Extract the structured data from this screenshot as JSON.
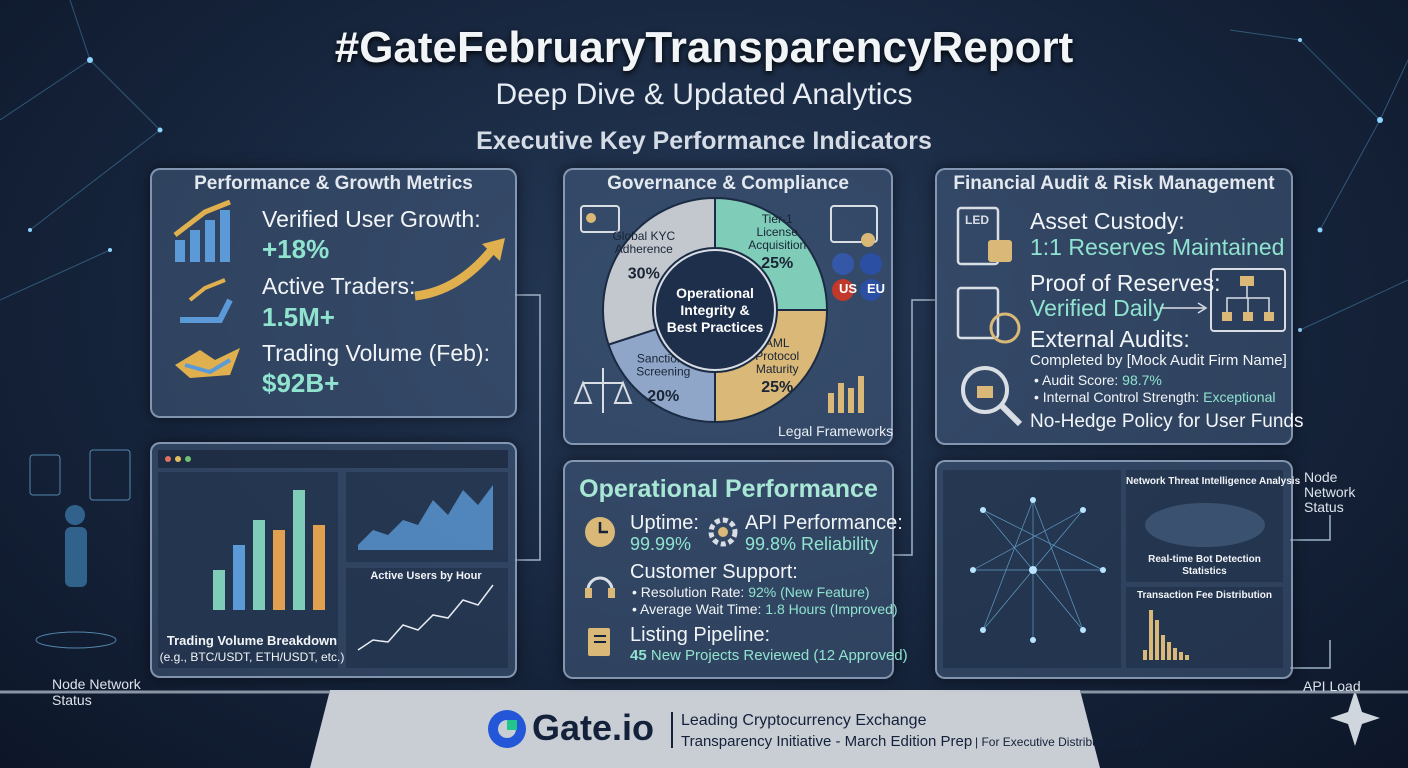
{
  "header": {
    "title": "#GateFebruaryTransparencyReport",
    "subtitle": "Deep Dive & Updated Analytics",
    "section": "Executive Key Performance Indicators"
  },
  "performance": {
    "title": "Performance & Growth Metrics",
    "items": [
      {
        "label": "Verified User Growth:",
        "value": "+18%"
      },
      {
        "label": "Active Traders:",
        "value": "1.5M+"
      },
      {
        "label": "Trading Volume (Feb):",
        "value": "$92B+"
      }
    ]
  },
  "governance": {
    "title": "Governance & Compliance",
    "center_lines": [
      "Operational",
      "Integrity &",
      "Best Practices"
    ],
    "segments": [
      {
        "name_lines": [
          "Tier-1",
          "License",
          "Acquisition"
        ],
        "value": 25,
        "value_label": "25%",
        "color": "#7fcdb8"
      },
      {
        "name_lines": [
          "AML",
          "Protocol",
          "Maturity"
        ],
        "value": 25,
        "value_label": "25%",
        "color": "#d9b878"
      },
      {
        "name_lines": [
          "Sanctions",
          "Screening"
        ],
        "value": 20,
        "value_label": "20%",
        "color": "#8fa6c8"
      },
      {
        "name_lines": [
          "Global KYC",
          "Adherence"
        ],
        "value": 30,
        "value_label": "30%",
        "color": "#c3c8cf"
      }
    ],
    "flags": [
      "US",
      "EU"
    ],
    "footer": "Legal Frameworks"
  },
  "financial": {
    "title": "Financial Audit & Risk Management",
    "icon_label": "LED",
    "custody_label": "Asset Custody:",
    "custody_value": "1:1 Reserves Maintained",
    "por_label": "Proof of Reserves:",
    "por_value": "Verified Daily",
    "audits_label": "External Audits:",
    "completed_by": "Completed by [Mock Audit Firm Name]",
    "score_label": "• Audit Score:",
    "score_value": "98.7%",
    "control_label": "• Internal Control Strength:",
    "control_value": "Exceptional",
    "policy": "No-Hedge Policy for User Funds"
  },
  "trading": {
    "title": "Trading Volume Breakdown",
    "subtitle": "(e.g., BTC/USDT, ETH/USDT, etc.)",
    "hourly_title": "Active Users by Hour"
  },
  "operational": {
    "title": "Operational Performance",
    "uptime_label": "Uptime:",
    "uptime_value": "99.99%",
    "api_label": "API Performance:",
    "api_value": "99.8% Reliability",
    "support_label": "Customer Support:",
    "resolution_label": "• Resolution Rate:",
    "resolution_value": "92% (New Feature)",
    "wait_label": "• Average Wait Time:",
    "wait_value": "1.8 Hours (Improved)",
    "listing_label": "Listing Pipeline:",
    "listing_count": "45",
    "listing_value": "New Projects Reviewed (12 Approved)"
  },
  "network": {
    "threat_title": "Network Threat Intelligence Analysis",
    "bot_lines": [
      "Real-time Bot Detection",
      "Statistics"
    ],
    "fee_title": "Transaction Fee Distribution"
  },
  "side_labels": {
    "left_status_lines": [
      "Node Network",
      "Status"
    ],
    "right_status_lines": [
      "Node",
      "Network",
      "Status"
    ],
    "api_load": "API Load"
  },
  "footer": {
    "brand": "Gate.io",
    "line1": "Leading Cryptocurrency Exchange",
    "line2": "Transparency Initiative - March Edition Prep",
    "note": "| For Executive Distribution Only"
  }
}
